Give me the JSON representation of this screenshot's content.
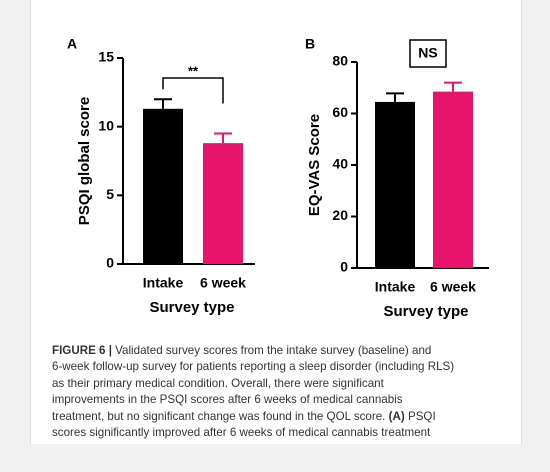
{
  "chart_data": [
    {
      "type": "bar",
      "panel": "A",
      "y_label": "PSQI global score",
      "x_label": "Survey type",
      "categories": [
        "Intake",
        "6 week"
      ],
      "values": [
        11.3,
        8.8
      ],
      "errors": [
        0.7,
        0.7
      ],
      "colors": [
        "#000000",
        "#e8136a"
      ],
      "ylim": [
        0,
        15
      ],
      "yticks": [
        0,
        5,
        10,
        15
      ],
      "annotation": "**"
    },
    {
      "type": "bar",
      "panel": "B",
      "y_label": "EQ-VAS Score",
      "x_label": "Survey type",
      "categories": [
        "Intake",
        "6 week"
      ],
      "values": [
        64.5,
        68.5
      ],
      "errors": [
        3.3,
        3.5
      ],
      "colors": [
        "#000000",
        "#e8136a"
      ],
      "ylim": [
        0,
        80
      ],
      "yticks": [
        0,
        20,
        40,
        60,
        80
      ],
      "annotation": "NS"
    }
  ],
  "caption": {
    "lines": [
      [
        {
          "text": "FIGURE 6 |",
          "bold": true
        },
        {
          "text": " Validated survey scores from the intake survey (baseline) and"
        }
      ],
      [
        {
          "text": "6-week follow-up survey for patients reporting a sleep disorder (including RLS)"
        }
      ],
      [
        {
          "text": "as their primary medical condition. Overall, there were significant"
        }
      ],
      [
        {
          "text": "improvements in the PSQI scores after 6 weeks of medical cannabis"
        }
      ],
      [
        {
          "text": "treatment, but no significant change was found in the QOL score. "
        },
        {
          "text": "(A)",
          "bold": true
        },
        {
          "text": " PSQI"
        }
      ],
      [
        {
          "text": "scores significantly improved after 6 weeks of medical cannabis treatment"
        }
      ]
    ]
  }
}
